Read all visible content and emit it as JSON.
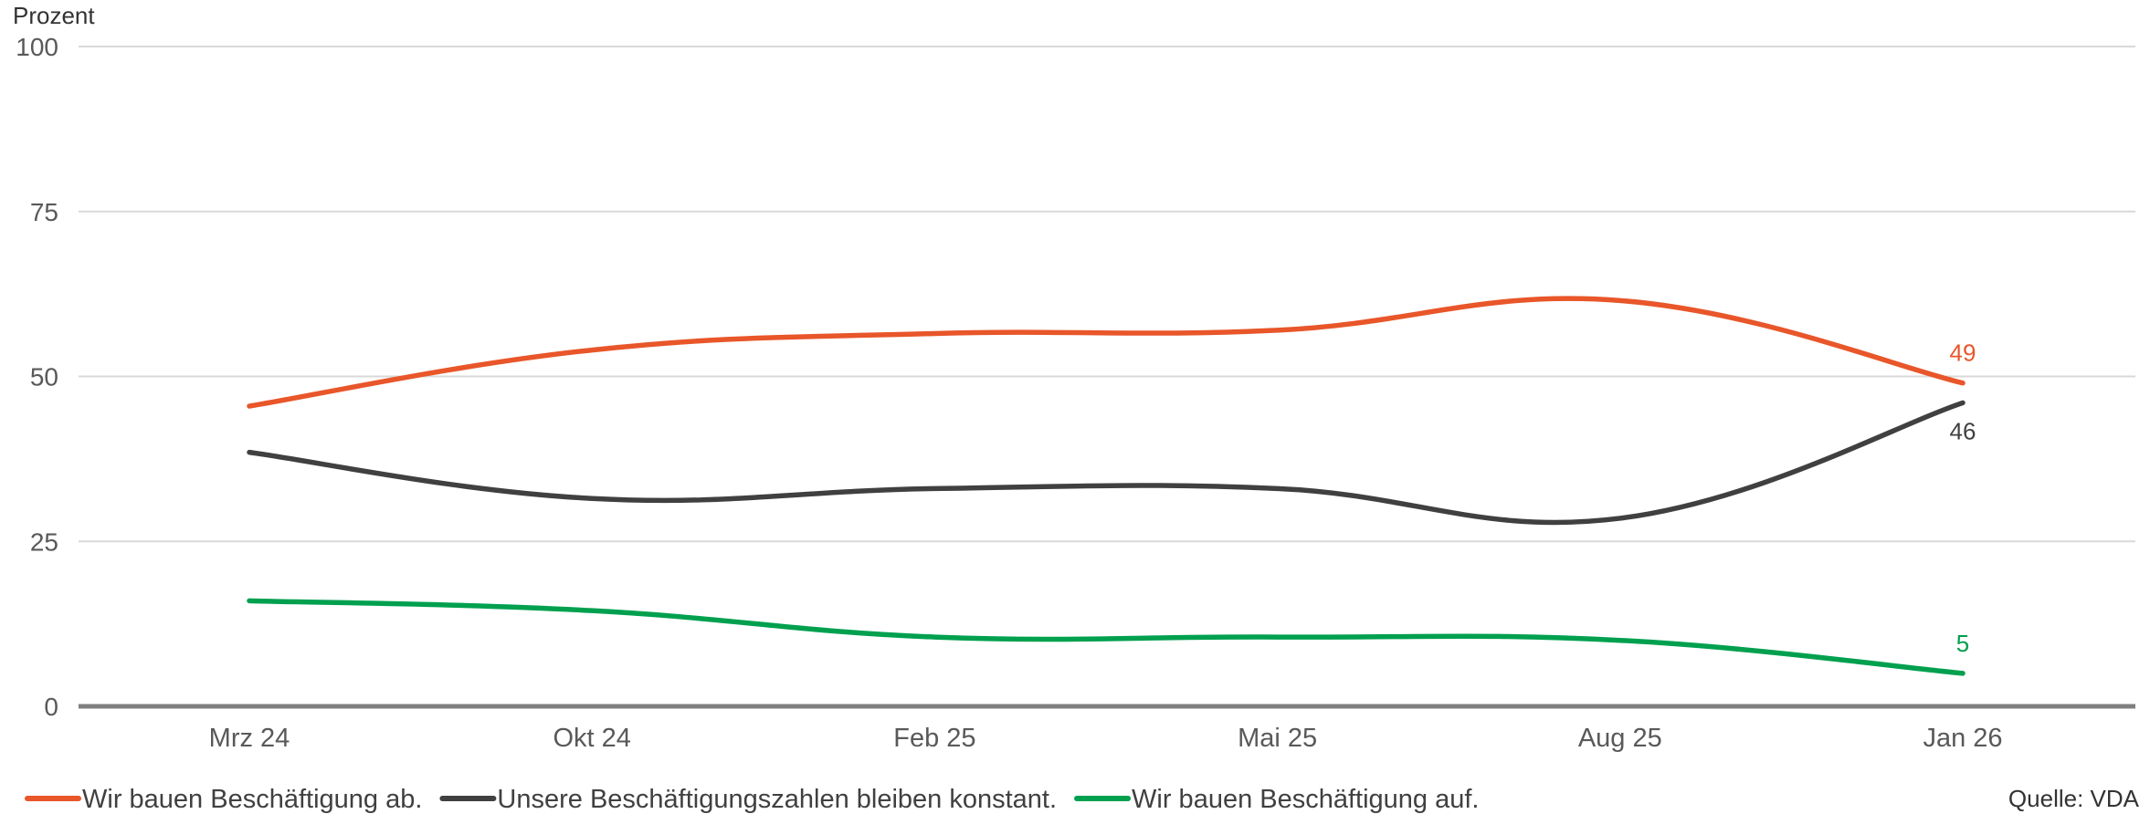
{
  "chart_data": {
    "type": "line",
    "ylabel": "Prozent",
    "ylim": [
      0,
      100
    ],
    "yticks": [
      0,
      25,
      50,
      75,
      100
    ],
    "categories": [
      "Mrz 24",
      "Okt 24",
      "Feb 25",
      "Mai 25",
      "Aug 25",
      "Jan 26"
    ],
    "grid": true,
    "legend_position": "bottom-left",
    "series": [
      {
        "name": "Wir bauen Beschäftigung ab.",
        "color": "#e8562a",
        "values": [
          45.5,
          54,
          56.5,
          57,
          61.5,
          49
        ],
        "last_label": "49"
      },
      {
        "name": "Unsere Beschäftigungszahlen bleiben konstant.",
        "color": "#404040",
        "values": [
          38.5,
          31.5,
          33,
          33,
          28.5,
          46
        ],
        "last_label": "46"
      },
      {
        "name": "Wir bauen Beschäftigung auf.",
        "color": "#00a04f",
        "values": [
          16,
          14.5,
          10.5,
          10.5,
          10,
          5
        ],
        "last_label": "5"
      }
    ],
    "source": "Quelle: VDA"
  }
}
